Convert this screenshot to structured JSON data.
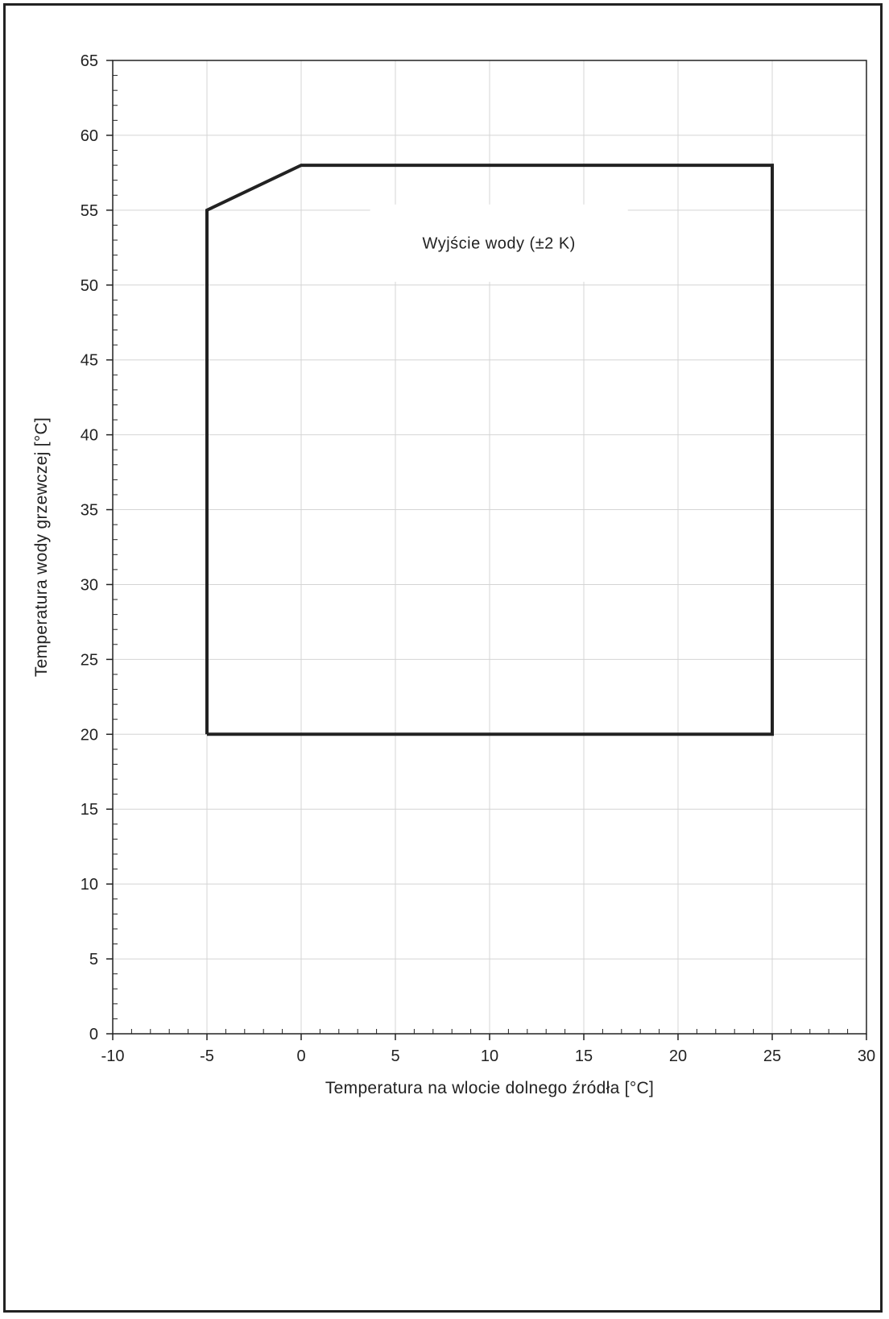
{
  "chart_data": {
    "type": "line",
    "title": "",
    "xlabel": "Temperatura na wlocie dolnego źródła [°C]",
    "ylabel": "Temperatura wody grzewczej [°C]",
    "xlim": [
      -10,
      30
    ],
    "ylim": [
      0,
      65
    ],
    "x_ticks": [
      -10,
      -5,
      0,
      5,
      10,
      15,
      20,
      25,
      30
    ],
    "y_ticks": [
      0,
      5,
      10,
      15,
      20,
      25,
      30,
      35,
      40,
      45,
      50,
      55,
      60,
      65
    ],
    "grid": true,
    "series": [
      {
        "points": [
          [
            -5,
            20
          ],
          [
            -5,
            55
          ],
          [
            0,
            58
          ],
          [
            25,
            58
          ],
          [
            25,
            20
          ],
          [
            -5,
            20
          ]
        ],
        "color": "#222222"
      }
    ],
    "annotations": [
      {
        "text": "Wyjście wody (±2 K)",
        "x": 10.5,
        "y": 52.8
      }
    ]
  }
}
